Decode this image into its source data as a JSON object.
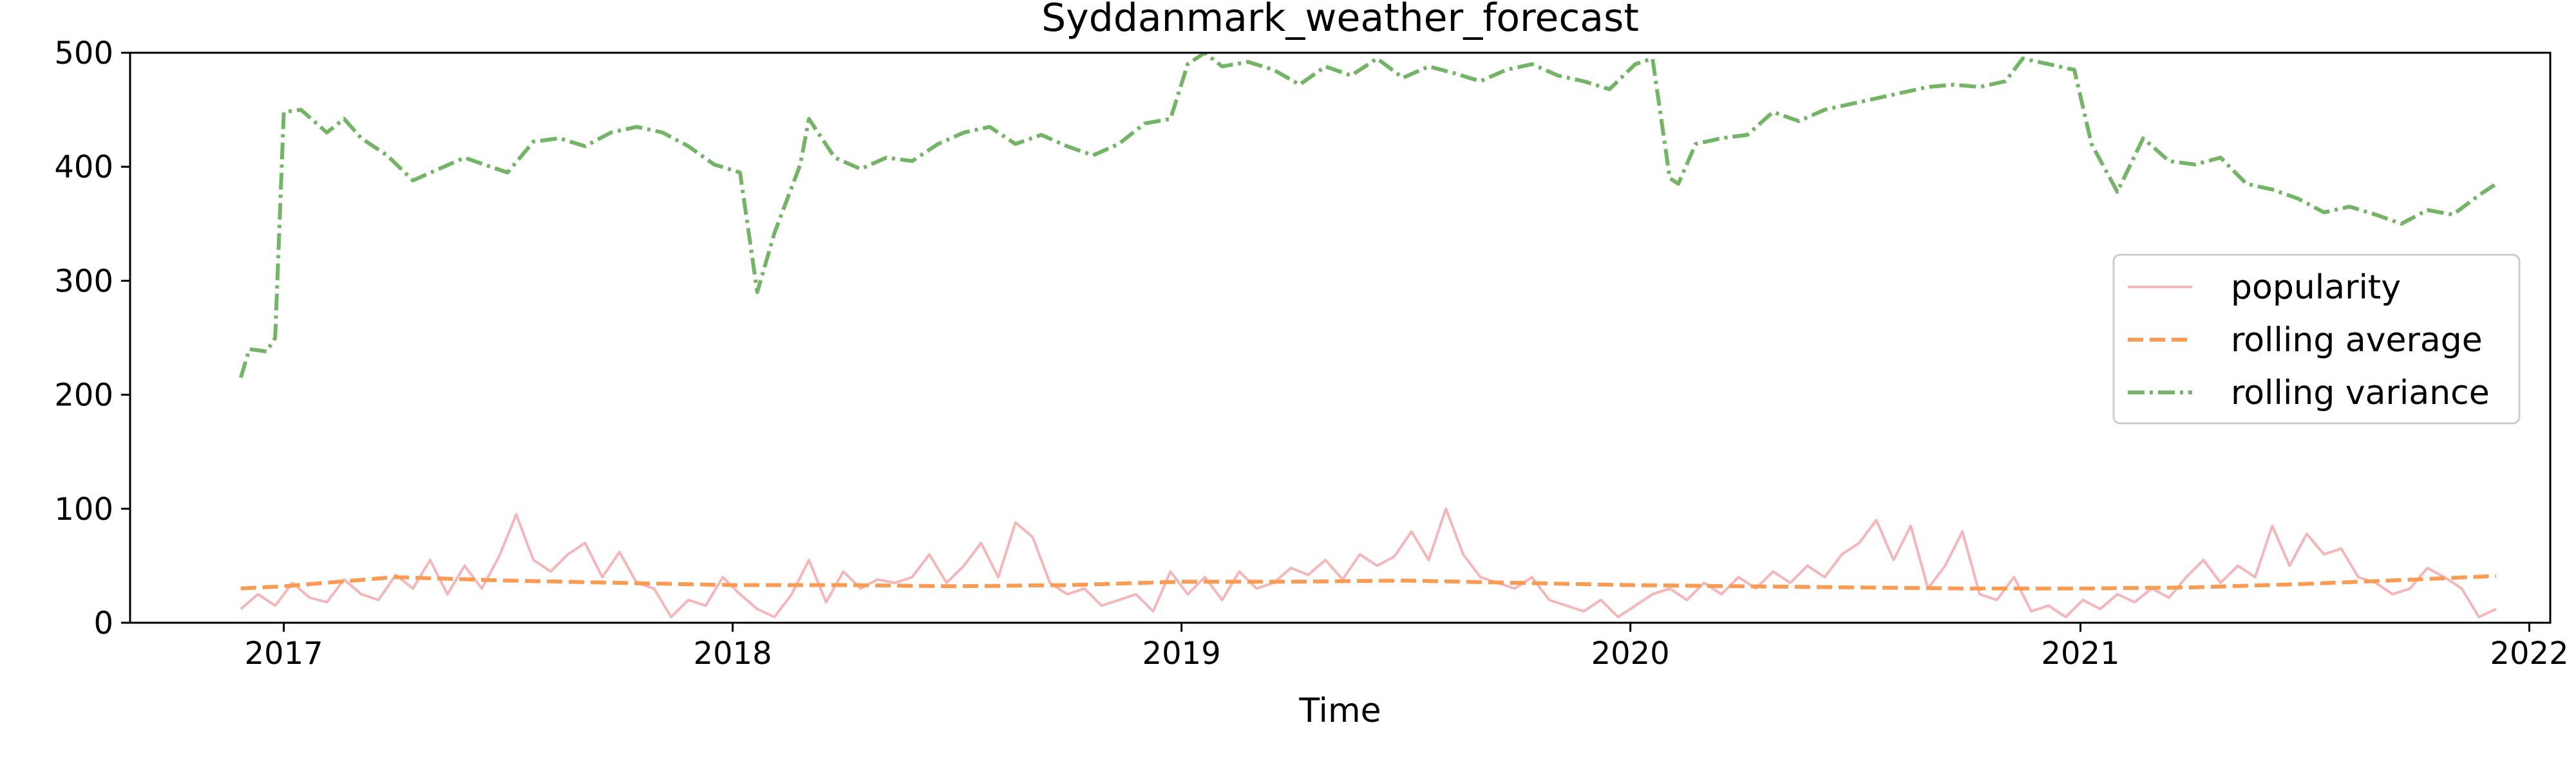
{
  "chart_data": {
    "type": "line",
    "title": "Syddanmark_weather_forecast",
    "xlabel": "Time",
    "ylabel": "",
    "xlim": [
      "2016-08-29",
      "2022-01-18"
    ],
    "ylim": [
      0,
      500
    ],
    "x_ticks": [
      "2017",
      "2018",
      "2019",
      "2020",
      "2021",
      "2022"
    ],
    "y_ticks": [
      0,
      100,
      200,
      300,
      400,
      500
    ],
    "grid": false,
    "legend_position": "center-right",
    "series": [
      {
        "name": "popularity",
        "color": "#f4b6b8",
        "dash": "solid",
        "points": [
          [
            "2016-11-27",
            12
          ],
          [
            "2016-12-11",
            25
          ],
          [
            "2016-12-25",
            15
          ],
          [
            "2017-01-08",
            35
          ],
          [
            "2017-01-22",
            22
          ],
          [
            "2017-02-05",
            18
          ],
          [
            "2017-02-19",
            38
          ],
          [
            "2017-03-05",
            25
          ],
          [
            "2017-03-19",
            20
          ],
          [
            "2017-04-02",
            42
          ],
          [
            "2017-04-16",
            30
          ],
          [
            "2017-04-30",
            55
          ],
          [
            "2017-05-14",
            25
          ],
          [
            "2017-05-28",
            50
          ],
          [
            "2017-06-11",
            30
          ],
          [
            "2017-06-25",
            58
          ],
          [
            "2017-07-09",
            95
          ],
          [
            "2017-07-23",
            55
          ],
          [
            "2017-08-06",
            45
          ],
          [
            "2017-08-20",
            60
          ],
          [
            "2017-09-03",
            70
          ],
          [
            "2017-09-17",
            40
          ],
          [
            "2017-10-01",
            62
          ],
          [
            "2017-10-15",
            35
          ],
          [
            "2017-10-29",
            30
          ],
          [
            "2017-11-12",
            5
          ],
          [
            "2017-11-26",
            20
          ],
          [
            "2017-12-10",
            15
          ],
          [
            "2017-12-24",
            40
          ],
          [
            "2018-01-07",
            25
          ],
          [
            "2018-01-21",
            12
          ],
          [
            "2018-02-04",
            5
          ],
          [
            "2018-02-18",
            25
          ],
          [
            "2018-03-04",
            55
          ],
          [
            "2018-03-18",
            18
          ],
          [
            "2018-04-01",
            45
          ],
          [
            "2018-04-15",
            30
          ],
          [
            "2018-04-29",
            38
          ],
          [
            "2018-05-13",
            35
          ],
          [
            "2018-05-27",
            40
          ],
          [
            "2018-06-10",
            60
          ],
          [
            "2018-06-24",
            35
          ],
          [
            "2018-07-08",
            50
          ],
          [
            "2018-07-22",
            70
          ],
          [
            "2018-08-05",
            40
          ],
          [
            "2018-08-19",
            88
          ],
          [
            "2018-09-02",
            75
          ],
          [
            "2018-09-16",
            35
          ],
          [
            "2018-09-30",
            25
          ],
          [
            "2018-10-14",
            30
          ],
          [
            "2018-10-28",
            15
          ],
          [
            "2018-11-11",
            20
          ],
          [
            "2018-11-25",
            25
          ],
          [
            "2018-12-09",
            10
          ],
          [
            "2018-12-23",
            45
          ],
          [
            "2019-01-06",
            25
          ],
          [
            "2019-01-20",
            40
          ],
          [
            "2019-02-03",
            20
          ],
          [
            "2019-02-17",
            45
          ],
          [
            "2019-03-03",
            30
          ],
          [
            "2019-03-17",
            35
          ],
          [
            "2019-03-31",
            48
          ],
          [
            "2019-04-14",
            42
          ],
          [
            "2019-04-28",
            55
          ],
          [
            "2019-05-12",
            38
          ],
          [
            "2019-05-26",
            60
          ],
          [
            "2019-06-09",
            50
          ],
          [
            "2019-06-23",
            58
          ],
          [
            "2019-07-07",
            80
          ],
          [
            "2019-07-21",
            55
          ],
          [
            "2019-08-04",
            100
          ],
          [
            "2019-08-18",
            60
          ],
          [
            "2019-09-01",
            40
          ],
          [
            "2019-09-15",
            35
          ],
          [
            "2019-09-29",
            30
          ],
          [
            "2019-10-13",
            40
          ],
          [
            "2019-10-27",
            20
          ],
          [
            "2019-11-10",
            15
          ],
          [
            "2019-11-24",
            10
          ],
          [
            "2019-12-08",
            20
          ],
          [
            "2019-12-22",
            5
          ],
          [
            "2020-01-05",
            15
          ],
          [
            "2020-01-19",
            25
          ],
          [
            "2020-02-02",
            30
          ],
          [
            "2020-02-16",
            20
          ],
          [
            "2020-03-01",
            35
          ],
          [
            "2020-03-15",
            25
          ],
          [
            "2020-03-29",
            40
          ],
          [
            "2020-04-12",
            30
          ],
          [
            "2020-04-26",
            45
          ],
          [
            "2020-05-10",
            35
          ],
          [
            "2020-05-24",
            50
          ],
          [
            "2020-06-07",
            40
          ],
          [
            "2020-06-21",
            60
          ],
          [
            "2020-07-05",
            70
          ],
          [
            "2020-07-19",
            90
          ],
          [
            "2020-08-02",
            55
          ],
          [
            "2020-08-16",
            85
          ],
          [
            "2020-08-30",
            30
          ],
          [
            "2020-09-13",
            50
          ],
          [
            "2020-09-27",
            80
          ],
          [
            "2020-10-11",
            25
          ],
          [
            "2020-10-25",
            20
          ],
          [
            "2020-11-08",
            40
          ],
          [
            "2020-11-22",
            10
          ],
          [
            "2020-12-06",
            15
          ],
          [
            "2020-12-20",
            5
          ],
          [
            "2021-01-03",
            20
          ],
          [
            "2021-01-17",
            12
          ],
          [
            "2021-01-31",
            25
          ],
          [
            "2021-02-14",
            18
          ],
          [
            "2021-02-28",
            30
          ],
          [
            "2021-03-14",
            22
          ],
          [
            "2021-03-28",
            40
          ],
          [
            "2021-04-11",
            55
          ],
          [
            "2021-04-25",
            35
          ],
          [
            "2021-05-09",
            50
          ],
          [
            "2021-05-23",
            40
          ],
          [
            "2021-06-06",
            85
          ],
          [
            "2021-06-20",
            50
          ],
          [
            "2021-07-04",
            78
          ],
          [
            "2021-07-18",
            60
          ],
          [
            "2021-08-01",
            65
          ],
          [
            "2021-08-15",
            40
          ],
          [
            "2021-08-29",
            35
          ],
          [
            "2021-09-12",
            25
          ],
          [
            "2021-09-26",
            30
          ],
          [
            "2021-10-10",
            48
          ],
          [
            "2021-10-24",
            40
          ],
          [
            "2021-11-07",
            30
          ],
          [
            "2021-11-21",
            5
          ],
          [
            "2021-12-05",
            12
          ]
        ]
      },
      {
        "name": "rolling average",
        "color": "#f99b53",
        "dash": "dashed",
        "points": [
          [
            "2016-11-27",
            30
          ],
          [
            "2017-01-01",
            32
          ],
          [
            "2017-04-01",
            40
          ],
          [
            "2017-07-01",
            37
          ],
          [
            "2017-10-01",
            35
          ],
          [
            "2018-01-01",
            33
          ],
          [
            "2018-04-01",
            33
          ],
          [
            "2018-07-01",
            32
          ],
          [
            "2018-10-01",
            33
          ],
          [
            "2019-01-01",
            36
          ],
          [
            "2019-04-01",
            36
          ],
          [
            "2019-07-01",
            37
          ],
          [
            "2019-10-01",
            35
          ],
          [
            "2020-01-01",
            33
          ],
          [
            "2020-04-01",
            32
          ],
          [
            "2020-07-01",
            31
          ],
          [
            "2020-10-01",
            30
          ],
          [
            "2021-01-01",
            30
          ],
          [
            "2021-04-01",
            31
          ],
          [
            "2021-07-01",
            34
          ],
          [
            "2021-10-01",
            38
          ],
          [
            "2021-12-05",
            41
          ]
        ]
      },
      {
        "name": "rolling variance",
        "color": "#74b466",
        "dash": "dashdot",
        "points": [
          [
            "2016-11-27",
            215
          ],
          [
            "2016-12-04",
            240
          ],
          [
            "2016-12-18",
            238
          ],
          [
            "2016-12-25",
            250
          ],
          [
            "2017-01-01",
            448
          ],
          [
            "2017-01-15",
            450
          ],
          [
            "2017-02-05",
            430
          ],
          [
            "2017-02-19",
            442
          ],
          [
            "2017-03-05",
            425
          ],
          [
            "2017-03-26",
            410
          ],
          [
            "2017-04-16",
            388
          ],
          [
            "2017-05-07",
            398
          ],
          [
            "2017-05-28",
            408
          ],
          [
            "2017-06-18",
            400
          ],
          [
            "2017-07-02",
            395
          ],
          [
            "2017-07-23",
            422
          ],
          [
            "2017-08-13",
            425
          ],
          [
            "2017-09-03",
            418
          ],
          [
            "2017-09-24",
            430
          ],
          [
            "2017-10-15",
            435
          ],
          [
            "2017-11-05",
            430
          ],
          [
            "2017-11-26",
            418
          ],
          [
            "2017-12-17",
            402
          ],
          [
            "2018-01-07",
            395
          ],
          [
            "2018-01-21",
            290
          ],
          [
            "2018-02-04",
            342
          ],
          [
            "2018-02-25",
            402
          ],
          [
            "2018-03-04",
            442
          ],
          [
            "2018-03-25",
            408
          ],
          [
            "2018-04-15",
            398
          ],
          [
            "2018-05-06",
            408
          ],
          [
            "2018-05-27",
            405
          ],
          [
            "2018-06-17",
            420
          ],
          [
            "2018-07-08",
            430
          ],
          [
            "2018-07-29",
            435
          ],
          [
            "2018-08-19",
            420
          ],
          [
            "2018-09-09",
            428
          ],
          [
            "2018-09-30",
            418
          ],
          [
            "2018-10-21",
            410
          ],
          [
            "2018-11-11",
            420
          ],
          [
            "2018-12-02",
            438
          ],
          [
            "2018-12-23",
            442
          ],
          [
            "2019-01-06",
            490
          ],
          [
            "2019-01-20",
            500
          ],
          [
            "2019-02-03",
            488
          ],
          [
            "2019-02-24",
            492
          ],
          [
            "2019-03-17",
            485
          ],
          [
            "2019-04-07",
            472
          ],
          [
            "2019-04-28",
            488
          ],
          [
            "2019-05-19",
            480
          ],
          [
            "2019-06-09",
            495
          ],
          [
            "2019-06-30",
            478
          ],
          [
            "2019-07-21",
            488
          ],
          [
            "2019-08-11",
            482
          ],
          [
            "2019-09-01",
            475
          ],
          [
            "2019-09-22",
            485
          ],
          [
            "2019-10-13",
            490
          ],
          [
            "2019-11-03",
            480
          ],
          [
            "2019-11-24",
            475
          ],
          [
            "2019-12-15",
            468
          ],
          [
            "2020-01-05",
            490
          ],
          [
            "2020-01-19",
            495
          ],
          [
            "2020-02-02",
            390
          ],
          [
            "2020-02-09",
            385
          ],
          [
            "2020-02-23",
            420
          ],
          [
            "2020-03-15",
            425
          ],
          [
            "2020-04-05",
            428
          ],
          [
            "2020-04-26",
            448
          ],
          [
            "2020-05-17",
            440
          ],
          [
            "2020-06-07",
            450
          ],
          [
            "2020-06-28",
            455
          ],
          [
            "2020-07-19",
            460
          ],
          [
            "2020-08-09",
            465
          ],
          [
            "2020-08-30",
            470
          ],
          [
            "2020-09-20",
            472
          ],
          [
            "2020-10-11",
            470
          ],
          [
            "2020-11-01",
            475
          ],
          [
            "2020-11-15",
            495
          ],
          [
            "2020-12-06",
            490
          ],
          [
            "2020-12-27",
            485
          ],
          [
            "2021-01-10",
            420
          ],
          [
            "2021-01-31",
            378
          ],
          [
            "2021-02-21",
            425
          ],
          [
            "2021-03-14",
            405
          ],
          [
            "2021-04-04",
            402
          ],
          [
            "2021-04-25",
            408
          ],
          [
            "2021-05-16",
            385
          ],
          [
            "2021-06-06",
            380
          ],
          [
            "2021-06-27",
            372
          ],
          [
            "2021-07-18",
            360
          ],
          [
            "2021-08-08",
            365
          ],
          [
            "2021-08-29",
            358
          ],
          [
            "2021-09-19",
            350
          ],
          [
            "2021-10-10",
            362
          ],
          [
            "2021-10-31",
            358
          ],
          [
            "2021-11-21",
            375
          ],
          [
            "2021-12-05",
            385
          ]
        ]
      }
    ]
  }
}
